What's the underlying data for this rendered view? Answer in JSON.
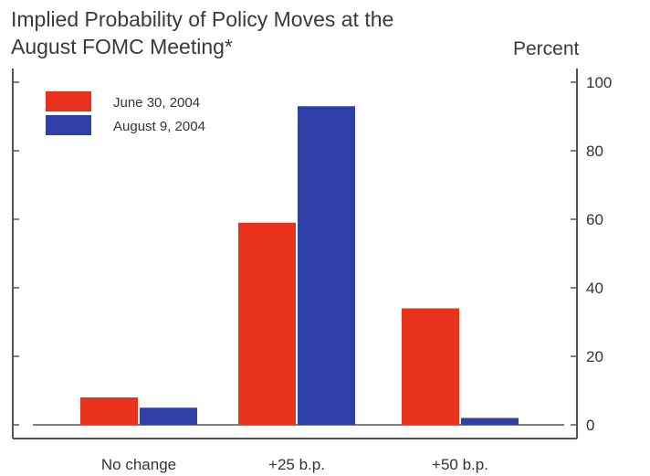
{
  "title_line1": "Implied Probability of Policy Moves at the",
  "title_line2": "August FOMC Meeting*",
  "unit_label": "Percent",
  "chart_data": {
    "type": "bar",
    "categories": [
      "No change",
      "+25 b.p.",
      "+50 b.p."
    ],
    "series": [
      {
        "name": "June 30, 2004",
        "color": "#e8321e",
        "values": [
          8,
          59,
          34
        ]
      },
      {
        "name": "August 9, 2004",
        "color": "#2e3fa8",
        "values": [
          5,
          93,
          2
        ]
      }
    ],
    "yticks": [
      0,
      20,
      40,
      60,
      80,
      100
    ],
    "ylim": [
      0,
      100
    ],
    "ylabel": "Percent",
    "y_axis_side": "right",
    "legend_position": "top-left",
    "grid": false
  }
}
